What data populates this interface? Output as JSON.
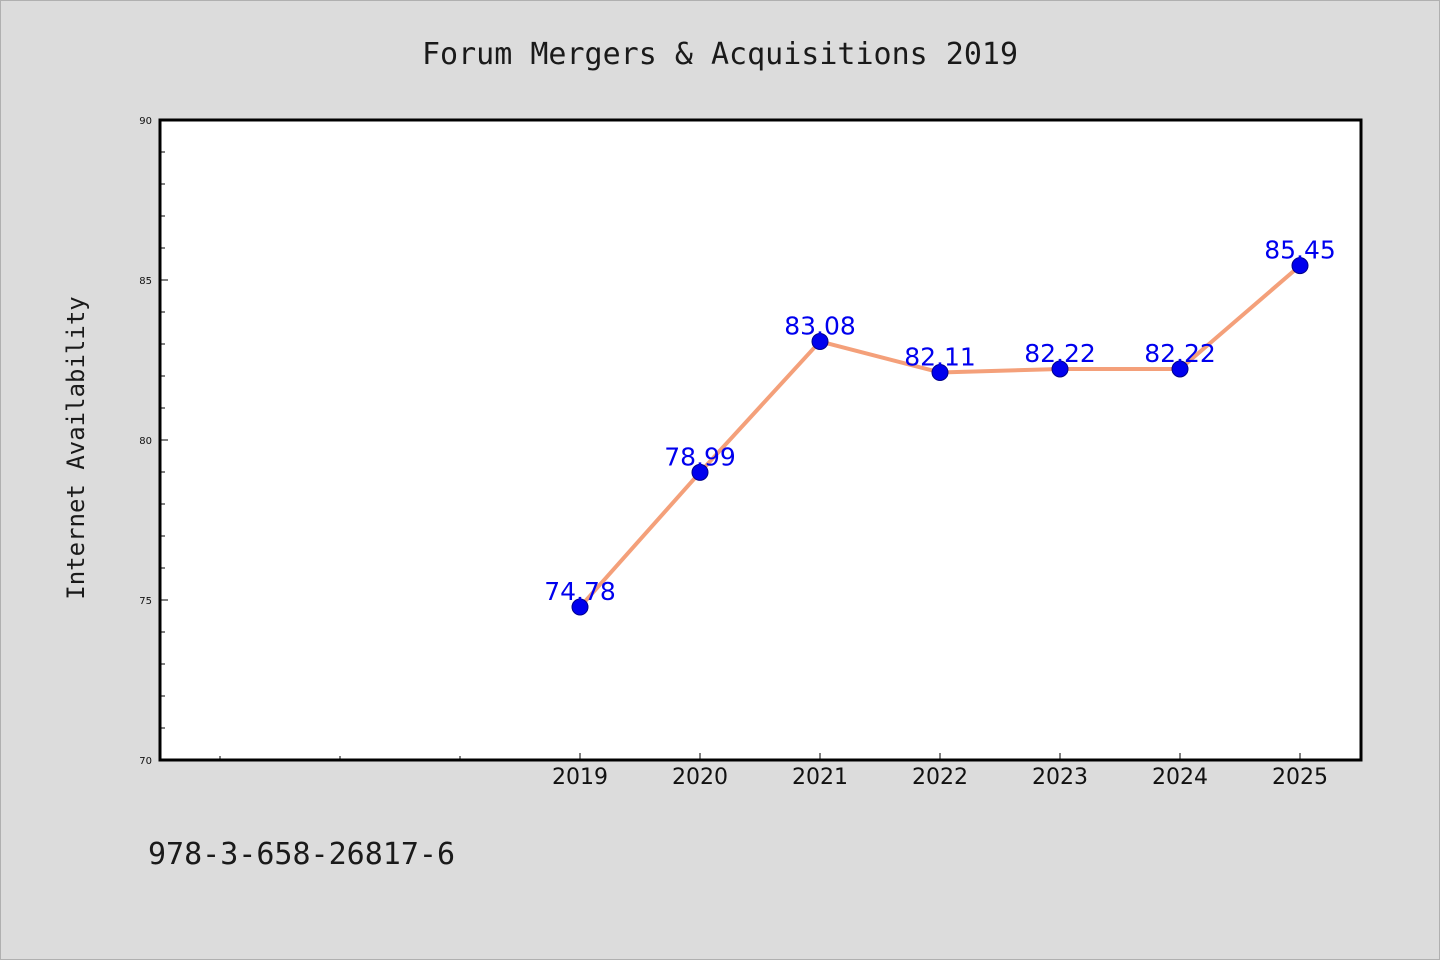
{
  "chart_data": {
    "type": "line",
    "title": "Forum Mergers & Acquisitions 2019",
    "xlabel": "",
    "ylabel": "Internet Availability",
    "x": [
      "2019",
      "2020",
      "2021",
      "2022",
      "2023",
      "2024",
      "2025"
    ],
    "series": [
      {
        "values": [
          74.78,
          78.99,
          83.08,
          82.11,
          82.22,
          82.22,
          85.45
        ]
      }
    ],
    "data_labels": [
      "74.78",
      "78.99",
      "83.08",
      "82.11",
      "82.22",
      "82.22",
      "85.45"
    ],
    "yticks": [
      "70",
      "75",
      "80",
      "85",
      "90"
    ],
    "ylim": [
      70,
      90
    ],
    "grid": false,
    "legend": "none",
    "colors": {
      "line": "#f4a07a",
      "marker": "#0000ee",
      "label": "#0000ee",
      "plot_bg": "#ffffff",
      "page_bg": "#dcdcdc"
    }
  },
  "footer": {
    "identifier": "978-3-658-26817-6"
  }
}
